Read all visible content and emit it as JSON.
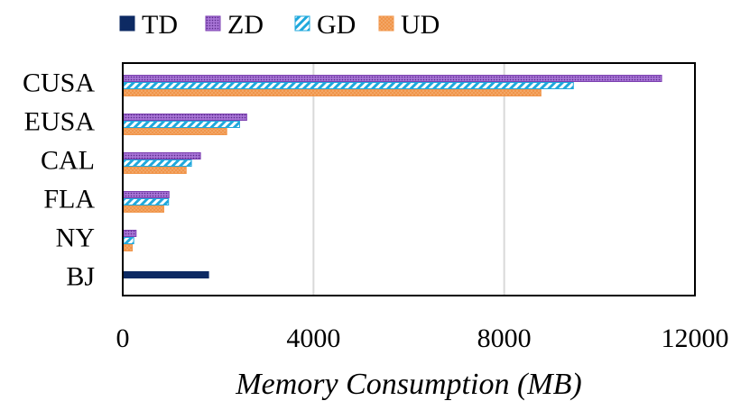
{
  "chart_data": {
    "type": "bar",
    "orientation": "horizontal",
    "title": "",
    "xlabel": "Memory Consumption (MB)",
    "ylabel": "",
    "xlim": [
      0,
      12000
    ],
    "xticks": [
      0,
      4000,
      8000,
      12000
    ],
    "xtick_labels": [
      "0",
      "4000",
      "8000",
      "12000"
    ],
    "grid": true,
    "legend_position": "top",
    "categories": [
      "CUSA",
      "EUSA",
      "CAL",
      "FLA",
      "NY",
      "BJ"
    ],
    "series": [
      {
        "name": "TD",
        "color": "#0d2a63",
        "pattern": "solid",
        "values": [
          null,
          null,
          null,
          null,
          null,
          1800
        ]
      },
      {
        "name": "ZD",
        "color": "#7b3fb0",
        "pattern": "dots",
        "values": [
          11300,
          2600,
          1630,
          970,
          280,
          null
        ]
      },
      {
        "name": "GD",
        "color": "#1fa8dc",
        "pattern": "diagonal",
        "values": [
          9450,
          2450,
          1440,
          960,
          230,
          null
        ]
      },
      {
        "name": "UD",
        "color": "#f0954a",
        "pattern": "speckle",
        "values": [
          8770,
          2180,
          1330,
          860,
          200,
          null
        ]
      }
    ]
  }
}
